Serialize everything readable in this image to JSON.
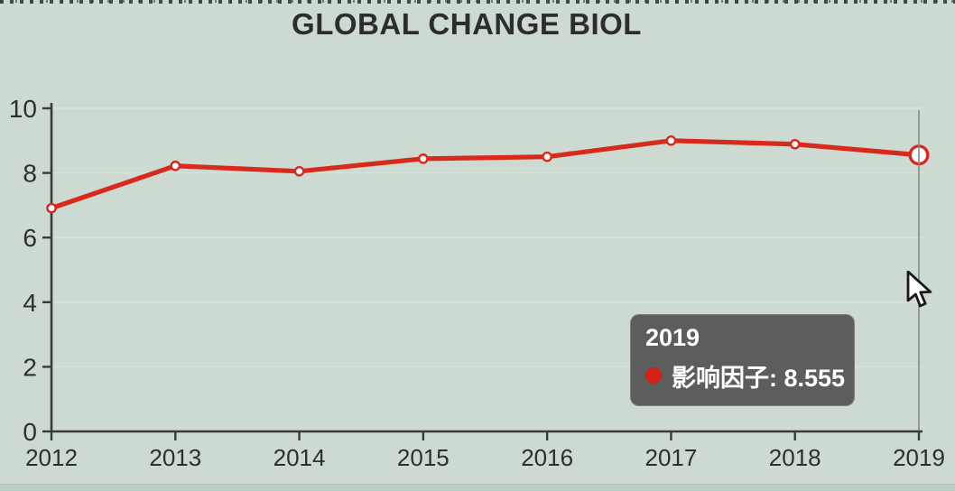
{
  "chart_data": {
    "type": "line",
    "title": "GLOBAL CHANGE BIOL",
    "categories": [
      "2012",
      "2013",
      "2014",
      "2015",
      "2016",
      "2017",
      "2018",
      "2019"
    ],
    "series": [
      {
        "name": "影响因子",
        "values": [
          6.91,
          8.22,
          8.05,
          8.44,
          8.5,
          9.0,
          8.89,
          8.555
        ]
      }
    ],
    "xlabel": "",
    "ylabel": "",
    "ylim": [
      0,
      10
    ],
    "yticks": [
      0,
      2,
      4,
      6,
      8,
      10
    ],
    "grid": "horizontal",
    "legend_position": "none",
    "line_color": "#d8291d",
    "marker_fill": "#ffffff",
    "highlighted_category": "2019",
    "highlighted_index": 7
  },
  "tooltip": {
    "year": "2019",
    "series_label": "影响因子",
    "value": "8.555",
    "text": "影响因子: 8.555",
    "dot_color": "#d42015",
    "background": "#58595a"
  },
  "colors": {
    "page_background": "#ccdad2",
    "axis": "#3a3a3a",
    "tick_label": "#2e2e2e",
    "gridline": "#dce7e0",
    "crosshair": "#7f8b86",
    "title_text": "#2d2d2d",
    "bottom_strip": "#bccfc5"
  },
  "cursor": {
    "type": "arrow"
  }
}
